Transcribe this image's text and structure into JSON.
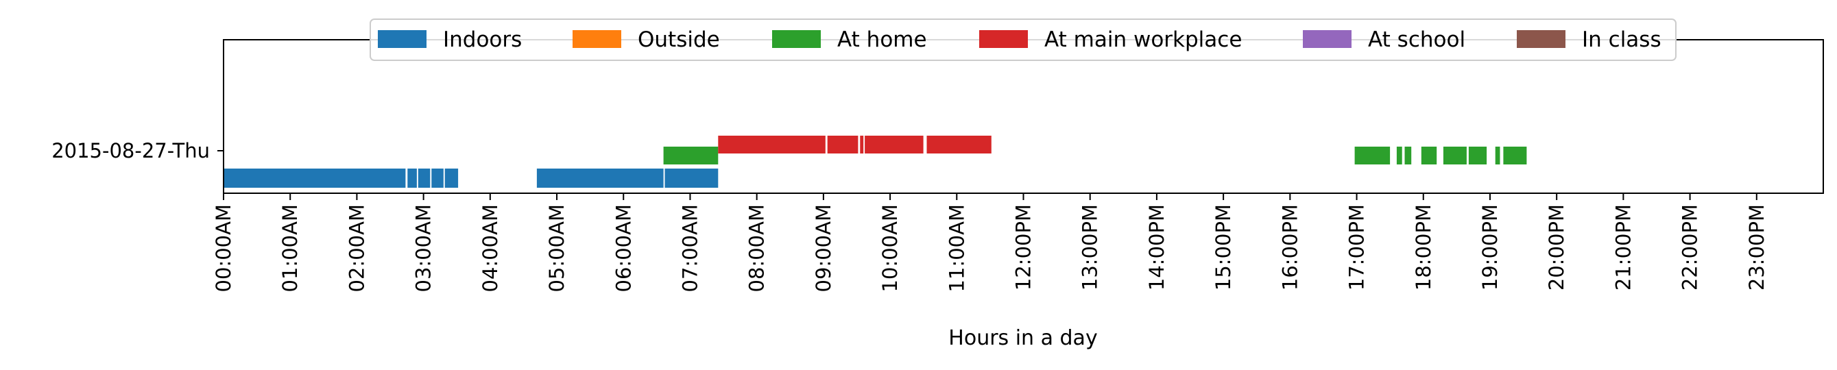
{
  "chart_data": {
    "type": "timeline",
    "title": "",
    "xlabel": "Hours in a day",
    "ylabel": "",
    "xlim": [
      0,
      24
    ],
    "grid": false,
    "legend_position": "top-center",
    "y_categories": [
      "2015-08-27-Thu"
    ],
    "x_ticks": [
      {
        "value": 0,
        "label": "00:00AM"
      },
      {
        "value": 1,
        "label": "01:00AM"
      },
      {
        "value": 2,
        "label": "02:00AM"
      },
      {
        "value": 3,
        "label": "03:00AM"
      },
      {
        "value": 4,
        "label": "04:00AM"
      },
      {
        "value": 5,
        "label": "05:00AM"
      },
      {
        "value": 6,
        "label": "06:00AM"
      },
      {
        "value": 7,
        "label": "07:00AM"
      },
      {
        "value": 8,
        "label": "08:00AM"
      },
      {
        "value": 9,
        "label": "09:00AM"
      },
      {
        "value": 10,
        "label": "10:00AM"
      },
      {
        "value": 11,
        "label": "11:00AM"
      },
      {
        "value": 12,
        "label": "12:00PM"
      },
      {
        "value": 13,
        "label": "13:00PM"
      },
      {
        "value": 14,
        "label": "14:00PM"
      },
      {
        "value": 15,
        "label": "15:00PM"
      },
      {
        "value": 16,
        "label": "16:00PM"
      },
      {
        "value": 17,
        "label": "17:00PM"
      },
      {
        "value": 18,
        "label": "18:00PM"
      },
      {
        "value": 19,
        "label": "19:00PM"
      },
      {
        "value": 20,
        "label": "20:00PM"
      },
      {
        "value": 21,
        "label": "21:00PM"
      },
      {
        "value": 22,
        "label": "22:00PM"
      },
      {
        "value": 23,
        "label": "23:00PM"
      }
    ],
    "series": [
      {
        "name": "Indoors",
        "color": "#1f77b4",
        "intervals": [
          [
            0.0,
            2.73
          ],
          [
            2.76,
            2.9
          ],
          [
            2.92,
            3.1
          ],
          [
            3.12,
            3.3
          ],
          [
            3.32,
            3.52
          ],
          [
            4.7,
            6.6
          ],
          [
            6.62,
            7.42
          ]
        ]
      },
      {
        "name": "Outside",
        "color": "#ff7f0e",
        "intervals": []
      },
      {
        "name": "At home",
        "color": "#2ca02c",
        "intervals": [
          [
            6.6,
            7.42
          ],
          [
            16.97,
            17.5
          ],
          [
            17.6,
            17.68
          ],
          [
            17.72,
            17.82
          ],
          [
            17.97,
            18.2
          ],
          [
            18.3,
            18.65
          ],
          [
            18.68,
            18.95
          ],
          [
            19.08,
            19.15
          ],
          [
            19.2,
            19.55
          ]
        ]
      },
      {
        "name": "At main workplace",
        "color": "#d62728",
        "intervals": [
          [
            7.42,
            9.03
          ],
          [
            9.06,
            9.52
          ],
          [
            9.55,
            9.6
          ],
          [
            9.62,
            10.5
          ],
          [
            10.55,
            11.52
          ]
        ]
      },
      {
        "name": "At school",
        "color": "#9467bd",
        "intervals": []
      },
      {
        "name": "In class",
        "color": "#8c564b",
        "intervals": []
      }
    ]
  }
}
